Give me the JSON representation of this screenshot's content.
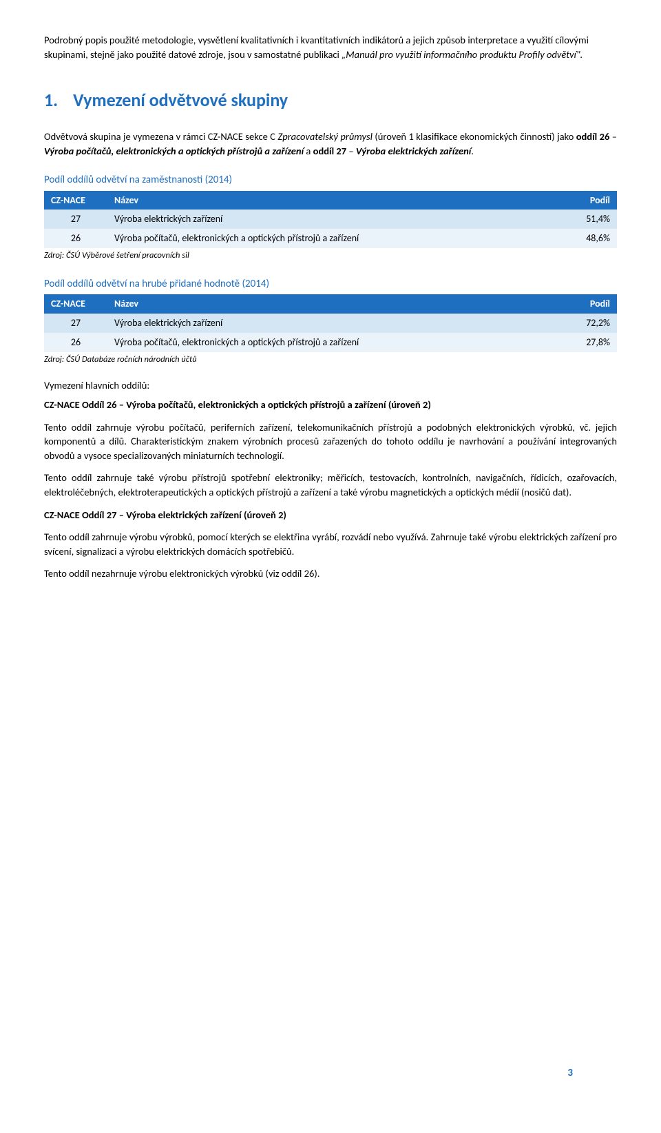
{
  "intro": {
    "p1a": "Podrobný popis použité metodologie, vysvětlení kvalitativních i kvantitativních indikátorů a jejich způsob interpretace a využití cílovými skupinami, stejně jako použité datové zdroje, jsou v samostatné publikaci ",
    "p1b": "„Manuál pro využití informačního produktu Profily odvětví\"."
  },
  "section": {
    "num": "1.",
    "title": "Vymezení odvětvové skupiny"
  },
  "definition": {
    "p1a": "Odvětvová skupina je vymezena v rámci CZ-NACE sekce C ",
    "p1b": "Zpracovatelský průmysl",
    "p1c": " (úroveň 1 klasifikace ekonomických činností) jako ",
    "p1d": "oddíl 26",
    "p1e": " – ",
    "p1f": "Výroba počítačů, elektronických a optických přístrojů a zařízení",
    "p1g": " a ",
    "p1h": "oddíl 27",
    "p1i": " – ",
    "p1j": "Výroba elektrických zařízení",
    "p1k": "."
  },
  "table1": {
    "title": "Podíl oddílů odvětví na zaměstnanosti (2014)",
    "cols": {
      "c1": "CZ-NACE",
      "c2": "Název",
      "c3": "Podíl"
    },
    "rows": [
      {
        "code": "27",
        "name": "Výroba elektrických zařízení",
        "pct": "51,4%"
      },
      {
        "code": "26",
        "name": "Výroba počítačů, elektronických a optických přístrojů a zařízení",
        "pct": "48,6%"
      }
    ],
    "source": "Zdroj: ČSÚ Výběrové šetření pracovních sil",
    "row_a_bg": "#d4e5f4",
    "row_b_bg": "#eaf2fa",
    "header_bg": "#1f6fc0"
  },
  "table2": {
    "title": "Podíl oddílů odvětví na hrubé přidané hodnotě (2014)",
    "cols": {
      "c1": "CZ-NACE",
      "c2": "Název",
      "c3": "Podíl"
    },
    "rows": [
      {
        "code": "27",
        "name": "Výroba elektrických zařízení",
        "pct": "72,2%"
      },
      {
        "code": "26",
        "name": "Výroba počítačů, elektronických a optických přístrojů a zařízení",
        "pct": "27,8%"
      }
    ],
    "source": "Zdroj: ČSÚ Databáze ročních národních účtů"
  },
  "subhead": "Vymezení hlavních oddílů:",
  "cz26": {
    "title": "CZ-NACE Oddíl 26 – Výroba počítačů, elektronických a optických přístrojů a zařízení (úroveň 2)",
    "p1": "Tento oddíl zahrnuje výrobu počítačů, periferních zařízení, telekomunikačních přístrojů a podobných elektronických výrobků, vč. jejich komponentů a dílů. Charakteristickým znakem výrobních procesů zařazených do tohoto oddílu je navrhování a používání integrovaných obvodů a vysoce specializovaných miniaturních technologií.",
    "p2": "Tento oddíl zahrnuje také výrobu přístrojů spotřební elektroniky; měřicích, testovacích, kontrolních, navigačních, řídicích, ozařovacích, elektroléčebných, elektroterapeutických a optických přístrojů a zařízení a také výrobu magnetických a optických médií (nosičů dat)."
  },
  "cz27": {
    "title": "CZ-NACE Oddíl 27 – Výroba elektrických zařízení (úroveň 2)",
    "p1": "Tento oddíl zahrnuje výrobu výrobků, pomocí kterých se elektřina vyrábí, rozvádí nebo využívá. Zahrnuje také výrobu elektrických zařízení pro svícení, signalizaci a výrobu elektrických domácích spotřebičů.",
    "p2": "Tento oddíl nezahrnuje výrobu elektronických výrobků (viz oddíl 26)."
  },
  "page_number": "3",
  "colors": {
    "accent": "#1f6fc0",
    "row_a": "#d4e5f4",
    "row_b": "#eaf2fa",
    "text": "#000000",
    "bg": "#ffffff"
  }
}
